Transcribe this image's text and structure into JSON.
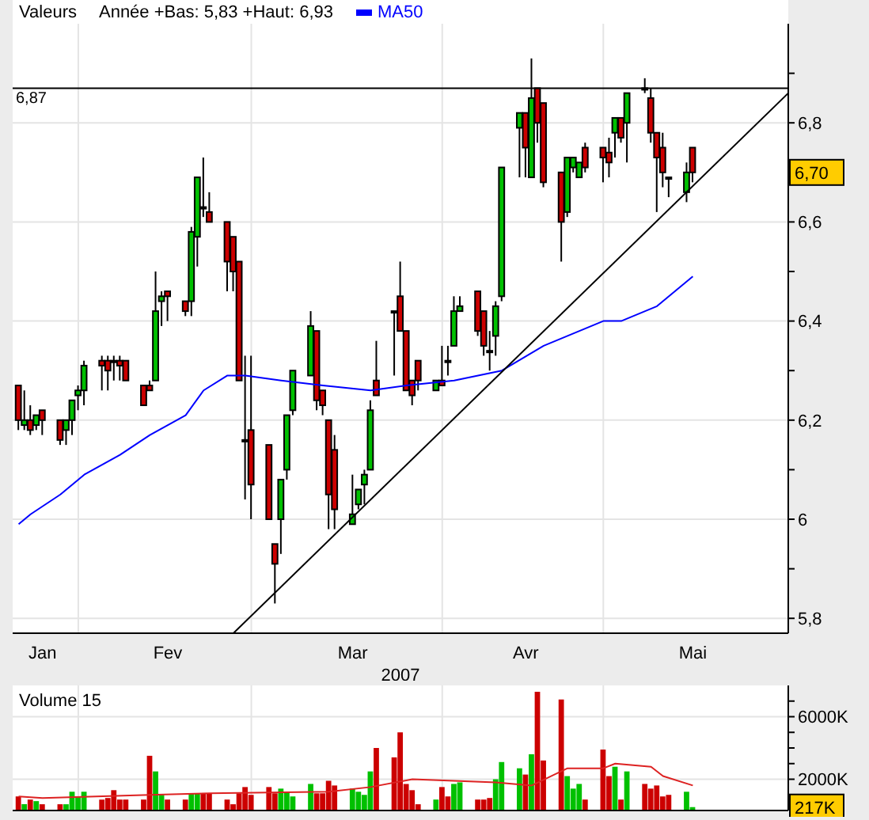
{
  "chart_data": [
    {
      "type": "candlestick",
      "title": "Valeurs",
      "xlabel": "2007",
      "legend": "top left",
      "grid": true,
      "annotations": [
        "Année +Bas: 5,83 +Haut: 6,93",
        "6,70"
      ],
      "x": [
        "2007-01-15",
        "2007-01-16",
        "2007-01-17",
        "2007-01-18",
        "2007-01-19",
        "2007-01-22",
        "2007-01-23",
        "2007-01-24",
        "2007-01-25",
        "2007-01-26",
        "2007-01-29",
        "2007-01-30",
        "2007-01-31",
        "2007-02-01",
        "2007-02-02",
        "2007-02-05",
        "2007-02-06",
        "2007-02-07",
        "2007-02-08",
        "2007-02-09",
        "2007-02-12",
        "2007-02-13",
        "2007-02-14",
        "2007-02-15",
        "2007-02-16",
        "2007-02-19",
        "2007-02-20",
        "2007-02-21",
        "2007-02-22",
        "2007-02-23",
        "2007-02-26",
        "2007-02-27",
        "2007-02-28",
        "2007-03-01",
        "2007-03-02",
        "2007-03-05",
        "2007-03-06",
        "2007-03-07",
        "2007-03-08",
        "2007-03-09",
        "2007-03-12",
        "2007-03-13",
        "2007-03-14",
        "2007-03-15",
        "2007-03-16",
        "2007-03-19",
        "2007-03-20",
        "2007-03-21",
        "2007-03-22",
        "2007-03-23",
        "2007-03-26",
        "2007-03-27",
        "2007-03-28",
        "2007-03-29",
        "2007-03-30",
        "2007-04-02",
        "2007-04-03",
        "2007-04-04",
        "2007-04-05",
        "2007-04-06",
        "2007-04-09",
        "2007-04-10",
        "2007-04-11",
        "2007-04-12",
        "2007-04-13",
        "2007-04-16",
        "2007-04-17",
        "2007-04-18",
        "2007-04-19",
        "2007-04-20",
        "2007-04-23",
        "2007-04-24",
        "2007-04-25",
        "2007-04-26",
        "2007-04-27",
        "2007-04-30",
        "2007-05-01",
        "2007-05-02",
        "2007-05-03",
        "2007-05-04",
        "2007-05-07",
        "2007-05-08"
      ],
      "ohlc": [
        [
          6.27,
          6.27,
          6.18,
          6.2
        ],
        [
          6.19,
          6.26,
          6.18,
          6.2
        ],
        [
          6.2,
          6.23,
          6.17,
          6.18
        ],
        [
          6.19,
          6.21,
          6.18,
          6.21
        ],
        [
          6.22,
          6.22,
          6.17,
          6.2
        ],
        [
          6.2,
          6.2,
          6.15,
          6.16
        ],
        [
          6.18,
          6.2,
          6.15,
          6.2
        ],
        [
          6.2,
          6.24,
          6.17,
          6.24
        ],
        [
          6.25,
          6.27,
          6.22,
          6.26
        ],
        [
          6.26,
          6.32,
          6.23,
          6.31
        ],
        [
          6.32,
          6.33,
          6.26,
          6.31
        ],
        [
          6.32,
          6.33,
          6.26,
          6.3
        ],
        [
          6.32,
          6.33,
          6.28,
          6.32
        ],
        [
          6.32,
          6.33,
          6.28,
          6.31
        ],
        [
          6.32,
          6.32,
          6.28,
          6.28
        ],
        [
          6.27,
          6.27,
          6.23,
          6.23
        ],
        [
          6.27,
          6.28,
          6.26,
          6.26
        ],
        [
          6.28,
          6.5,
          6.28,
          6.42
        ],
        [
          6.44,
          6.46,
          6.39,
          6.45
        ],
        [
          6.46,
          6.46,
          6.4,
          6.45
        ],
        [
          6.44,
          6.44,
          6.41,
          6.42
        ],
        [
          6.44,
          6.59,
          6.41,
          6.58
        ],
        [
          6.57,
          6.69,
          6.51,
          6.69
        ],
        [
          6.63,
          6.73,
          6.61,
          6.63
        ],
        [
          6.62,
          6.66,
          6.6,
          6.6
        ],
        [
          6.6,
          6.6,
          6.46,
          6.52
        ],
        [
          6.57,
          6.57,
          6.46,
          6.5
        ],
        [
          6.52,
          6.52,
          6.28,
          6.28
        ],
        [
          6.16,
          6.33,
          6.04,
          6.16
        ],
        [
          6.18,
          6.33,
          6.0,
          6.07
        ],
        [
          6.15,
          6.15,
          6.0,
          6.0
        ],
        [
          5.95,
          5.95,
          5.83,
          5.91
        ],
        [
          6.0,
          6.08,
          5.93,
          6.08
        ],
        [
          6.1,
          6.21,
          6.08,
          6.21
        ],
        [
          6.22,
          6.3,
          6.21,
          6.3
        ],
        [
          6.29,
          6.42,
          6.29,
          6.39
        ],
        [
          6.38,
          6.38,
          6.22,
          6.24
        ],
        [
          6.26,
          6.26,
          6.21,
          6.23
        ],
        [
          6.2,
          6.2,
          5.98,
          6.05
        ],
        [
          6.14,
          6.17,
          5.98,
          6.02
        ],
        [
          5.99,
          6.09,
          5.99,
          6.01
        ],
        [
          6.03,
          6.06,
          6.02,
          6.06
        ],
        [
          6.07,
          6.1,
          6.03,
          6.09
        ],
        [
          6.1,
          6.24,
          6.1,
          6.22
        ],
        [
          6.28,
          6.36,
          6.25,
          6.25
        ],
        [
          6.42,
          6.42,
          6.29,
          6.42
        ],
        [
          6.45,
          6.52,
          6.38,
          6.38
        ],
        [
          6.38,
          6.38,
          6.26,
          6.26
        ],
        [
          6.28,
          6.28,
          6.23,
          6.25
        ],
        [
          6.32,
          6.32,
          6.26,
          6.28
        ],
        [
          6.26,
          6.28,
          6.26,
          6.28
        ],
        [
          6.28,
          6.35,
          6.27,
          6.27
        ],
        [
          6.32,
          6.35,
          6.29,
          6.32
        ],
        [
          6.35,
          6.45,
          6.35,
          6.42
        ],
        [
          6.42,
          6.45,
          6.42,
          6.43
        ],
        [
          6.46,
          6.46,
          6.37,
          6.38
        ],
        [
          6.42,
          6.42,
          6.33,
          6.35
        ],
        [
          6.34,
          6.38,
          6.3,
          6.34
        ],
        [
          6.37,
          6.44,
          6.33,
          6.43
        ],
        [
          6.45,
          6.71,
          6.44,
          6.71
        ],
        [
          6.79,
          6.82,
          6.69,
          6.82
        ],
        [
          6.82,
          6.82,
          6.69,
          6.75
        ],
        [
          6.69,
          6.93,
          6.69,
          6.85
        ],
        [
          6.87,
          6.87,
          6.76,
          6.8
        ],
        [
          6.84,
          6.84,
          6.67,
          6.68
        ],
        [
          6.7,
          6.7,
          6.52,
          6.6
        ],
        [
          6.62,
          6.73,
          6.61,
          6.73
        ],
        [
          6.71,
          6.73,
          6.7,
          6.73
        ],
        [
          6.69,
          6.72,
          6.69,
          6.72
        ],
        [
          6.75,
          6.76,
          6.7,
          6.71
        ],
        [
          6.75,
          6.75,
          6.68,
          6.73
        ],
        [
          6.74,
          6.77,
          6.69,
          6.72
        ],
        [
          6.78,
          6.81,
          6.73,
          6.81
        ],
        [
          6.81,
          6.81,
          6.76,
          6.77
        ],
        [
          6.8,
          6.86,
          6.72,
          6.86
        ],
        [
          6.87,
          6.89,
          6.86,
          6.87
        ],
        [
          6.85,
          6.87,
          6.76,
          6.78
        ],
        [
          6.78,
          6.78,
          6.62,
          6.73
        ],
        [
          6.75,
          6.78,
          6.67,
          6.7
        ],
        [
          6.69,
          6.69,
          6.65,
          6.69
        ],
        [
          6.66,
          6.72,
          6.64,
          6.7
        ],
        [
          6.75,
          6.75,
          6.68,
          6.7
        ]
      ],
      "colors": [
        "#cc0000",
        "#00c000",
        "#cc0000",
        "#00c000",
        "#cc0000",
        "#cc0000",
        "#00c000",
        "#00c000",
        "#00c000",
        "#00c000",
        "#cc0000",
        "#cc0000",
        "#cc0000",
        "#cc0000",
        "#cc0000",
        "#cc0000",
        "#cc0000",
        "#00c000",
        "#00c000",
        "#cc0000",
        "#cc0000",
        "#00c000",
        "#00c000",
        "#cc0000",
        "#cc0000",
        "#cc0000",
        "#cc0000",
        "#cc0000",
        "#cc0000",
        "#cc0000",
        "#cc0000",
        "#cc0000",
        "#00c000",
        "#00c000",
        "#00c000",
        "#00c000",
        "#cc0000",
        "#cc0000",
        "#cc0000",
        "#cc0000",
        "#00c000",
        "#00c000",
        "#00c000",
        "#00c000",
        "#cc0000",
        "#cc0000",
        "#cc0000",
        "#cc0000",
        "#cc0000",
        "#cc0000",
        "#00c000",
        "#cc0000",
        "#cc0000",
        "#00c000",
        "#00c000",
        "#cc0000",
        "#cc0000",
        "#cc0000",
        "#00c000",
        "#00c000",
        "#00c000",
        "#cc0000",
        "#00c000",
        "#cc0000",
        "#cc0000",
        "#cc0000",
        "#00c000",
        "#00c000",
        "#00c000",
        "#cc0000",
        "#cc0000",
        "#cc0000",
        "#00c000",
        "#cc0000",
        "#00c000",
        "#cc0000",
        "#cc0000",
        "#cc0000",
        "#cc0000",
        "#cc0000",
        "#00c000",
        "#cc0000"
      ],
      "series": [
        {
          "name": "MA50",
          "type": "line",
          "color": "#0000ff",
          "x": [
            "2007-01-15",
            "2007-01-17",
            "2007-01-22",
            "2007-01-26",
            "2007-02-01",
            "2007-02-06",
            "2007-02-12",
            "2007-02-15",
            "2007-02-19",
            "2007-02-22",
            "2007-02-28",
            "2007-03-07",
            "2007-03-15",
            "2007-03-21",
            "2007-03-29",
            "2007-04-06",
            "2007-04-13",
            "2007-04-23",
            "2007-04-26",
            "2007-05-02",
            "2007-05-08"
          ],
          "values": [
            5.99,
            6.01,
            6.05,
            6.09,
            6.13,
            6.17,
            6.21,
            6.26,
            6.29,
            6.29,
            6.28,
            6.27,
            6.26,
            6.27,
            6.28,
            6.3,
            6.35,
            6.4,
            6.4,
            6.43,
            6.49
          ]
        },
        {
          "type": "line",
          "color": "#000000",
          "x": [
            "2007-02-20",
            "2007-05-24"
          ],
          "values": [
            5.77,
            6.86
          ]
        }
      ],
      "ref_lines": [
        {
          "axis": "y",
          "value": 6.87,
          "label": "6,87",
          "color": "#000000"
        }
      ],
      "xlim": [
        "2007-01-14",
        "2007-05-24"
      ],
      "xticks": [
        {
          "value": "2007-01-19",
          "label": "Jan"
        },
        {
          "value": "2007-02-09",
          "label": "Fev"
        },
        {
          "value": "2007-03-12",
          "label": "Mar"
        },
        {
          "value": "2007-04-10",
          "label": "Avr"
        },
        {
          "value": "2007-05-08",
          "label": "Mai"
        },
        {
          "value": "2007-01-25",
          "label": null
        },
        {
          "value": "2007-02-23",
          "label": null
        },
        {
          "value": "2007-03-27",
          "label": null
        },
        {
          "value": "2007-04-23",
          "label": null
        }
      ],
      "ylim": [
        5.77,
        7.0
      ],
      "yticks": [
        {
          "value": 5.8,
          "label": "5,8"
        },
        6,
        {
          "value": 6.2,
          "label": "6,2"
        },
        {
          "value": 6.4,
          "label": "6,4"
        },
        {
          "value": 6.6,
          "label": "6,6"
        },
        {
          "value": 6.8,
          "label": "6,8"
        },
        {
          "value": 5.9,
          "label": null
        },
        {
          "value": 6.1,
          "label": null
        },
        {
          "value": 6.3,
          "label": null
        },
        {
          "value": 6.5,
          "label": null
        },
        {
          "value": 6.7,
          "label": null
        },
        {
          "value": 6.9,
          "label": null
        }
      ]
    },
    {
      "type": "bar",
      "title": "Volume 15",
      "grid": true,
      "tick_labels": "y",
      "annotations": [
        {
          "text": "217K",
          "y": 217
        }
      ],
      "x": [
        "2007-01-15",
        "2007-01-16",
        "2007-01-17",
        "2007-01-18",
        "2007-01-19",
        "2007-01-22",
        "2007-01-23",
        "2007-01-24",
        "2007-01-25",
        "2007-01-26",
        "2007-01-29",
        "2007-01-30",
        "2007-01-31",
        "2007-02-01",
        "2007-02-02",
        "2007-02-05",
        "2007-02-06",
        "2007-02-07",
        "2007-02-08",
        "2007-02-09",
        "2007-02-12",
        "2007-02-13",
        "2007-02-14",
        "2007-02-15",
        "2007-02-16",
        "2007-02-19",
        "2007-02-20",
        "2007-02-21",
        "2007-02-22",
        "2007-02-23",
        "2007-02-26",
        "2007-02-27",
        "2007-02-28",
        "2007-03-01",
        "2007-03-02",
        "2007-03-05",
        "2007-03-06",
        "2007-03-07",
        "2007-03-08",
        "2007-03-09",
        "2007-03-12",
        "2007-03-13",
        "2007-03-14",
        "2007-03-15",
        "2007-03-16",
        "2007-03-19",
        "2007-03-20",
        "2007-03-21",
        "2007-03-22",
        "2007-03-23",
        "2007-03-26",
        "2007-03-27",
        "2007-03-28",
        "2007-03-29",
        "2007-03-30",
        "2007-04-02",
        "2007-04-03",
        "2007-04-04",
        "2007-04-05",
        "2007-04-06",
        "2007-04-09",
        "2007-04-10",
        "2007-04-11",
        "2007-04-12",
        "2007-04-13",
        "2007-04-16",
        "2007-04-17",
        "2007-04-18",
        "2007-04-19",
        "2007-04-20",
        "2007-04-23",
        "2007-04-24",
        "2007-04-25",
        "2007-04-26",
        "2007-04-27",
        "2007-04-30",
        "2007-05-01",
        "2007-05-02",
        "2007-05-03",
        "2007-05-04",
        "2007-05-07",
        "2007-05-08"
      ],
      "series": [
        {
          "type": "bar",
          "values": [
            900,
            400,
            700,
            600,
            400,
            400,
            400,
            1200,
            900,
            1200,
            700,
            800,
            1300,
            700,
            700,
            700,
            3500,
            2500,
            1000,
            700,
            700,
            1100,
            1100,
            1100,
            1100,
            700,
            400,
            1100,
            1500,
            1000,
            1500,
            1100,
            1400,
            1200,
            900,
            1700,
            1100,
            1100,
            1900,
            1600,
            1400,
            1200,
            1000,
            2500,
            4000,
            3400,
            5000,
            1700,
            1300,
            400,
            700,
            1500,
            900,
            1700,
            1800,
            700,
            700,
            800,
            2000,
            3100,
            2700,
            2300,
            3600,
            7600,
            3200,
            7100,
            2200,
            1400,
            1700,
            700,
            3900,
            2200,
            2800,
            700,
            2500,
            1700,
            1400,
            1600,
            900,
            1000,
            1200,
            217
          ],
          "colors": [
            "#cc0000",
            "#00c000",
            "#cc0000",
            "#00c000",
            "#cc0000",
            "#cc0000",
            "#00c000",
            "#00c000",
            "#00c000",
            "#00c000",
            "#cc0000",
            "#cc0000",
            "#cc0000",
            "#cc0000",
            "#cc0000",
            "#cc0000",
            "#cc0000",
            "#00c000",
            "#00c000",
            "#cc0000",
            "#cc0000",
            "#00c000",
            "#00c000",
            "#cc0000",
            "#cc0000",
            "#cc0000",
            "#cc0000",
            "#cc0000",
            "#cc0000",
            "#cc0000",
            "#cc0000",
            "#cc0000",
            "#00c000",
            "#00c000",
            "#00c000",
            "#00c000",
            "#cc0000",
            "#cc0000",
            "#cc0000",
            "#cc0000",
            "#00c000",
            "#00c000",
            "#00c000",
            "#00c000",
            "#cc0000",
            "#cc0000",
            "#cc0000",
            "#cc0000",
            "#cc0000",
            "#cc0000",
            "#00c000",
            "#cc0000",
            "#cc0000",
            "#00c000",
            "#00c000",
            "#cc0000",
            "#cc0000",
            "#cc0000",
            "#00c000",
            "#00c000",
            "#00c000",
            "#cc0000",
            "#00c000",
            "#cc0000",
            "#cc0000",
            "#cc0000",
            "#00c000",
            "#00c000",
            "#00c000",
            "#cc0000",
            "#cc0000",
            "#cc0000",
            "#00c000",
            "#cc0000",
            "#00c000",
            "#cc0000",
            "#cc0000",
            "#cc0000",
            "#cc0000",
            "#cc0000",
            "#00c000",
            "#00c000"
          ]
        },
        {
          "type": "line",
          "color": "#dd2222",
          "x": [
            "2007-01-15",
            "2007-01-19",
            "2007-02-06",
            "2007-02-16",
            "2007-03-08",
            "2007-03-15",
            "2007-03-22",
            "2007-04-05",
            "2007-04-11",
            "2007-04-17",
            "2007-04-23",
            "2007-04-25",
            "2007-05-01",
            "2007-05-03",
            "2007-05-08"
          ],
          "values": [
            900,
            800,
            1000,
            1100,
            1200,
            1500,
            2000,
            1800,
            1600,
            2700,
            2700,
            3000,
            2800,
            2200,
            1600
          ]
        }
      ],
      "xlim": [
        "2007-01-14",
        "2007-05-24"
      ],
      "xticks": [
        {
          "value": "2007-01-25",
          "label": null
        },
        {
          "value": "2007-02-23",
          "label": null
        },
        {
          "value": "2007-03-27",
          "label": null
        },
        {
          "value": "2007-04-23",
          "label": null
        }
      ],
      "ylim": [
        0,
        8000
      ],
      "yticks": [
        {
          "value": 2000,
          "label": "2000K"
        },
        {
          "value": 6000,
          "label": "6000K"
        },
        {
          "value": 1000,
          "label": null
        },
        {
          "value": 3000,
          "label": null
        },
        {
          "value": 4000,
          "label": null
        },
        {
          "value": 5000,
          "label": null
        },
        {
          "value": 7000,
          "label": null
        }
      ]
    }
  ]
}
